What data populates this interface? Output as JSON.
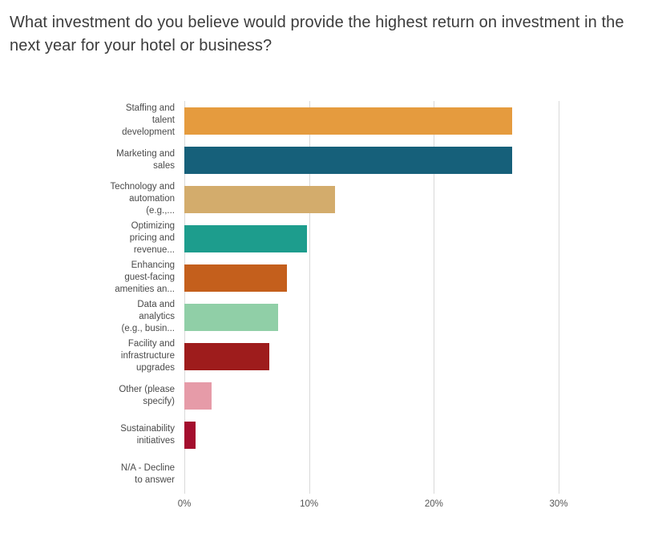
{
  "title": "What investment do you believe would provide the highest return on investment in the next year for your hotel or business?",
  "chart_data": {
    "type": "bar",
    "orientation": "horizontal",
    "title": "What investment do you believe would provide the highest return on investment in the next year for your hotel or business?",
    "xlabel": "",
    "ylabel": "",
    "xlim": [
      0,
      30
    ],
    "grid": true,
    "legend": "none",
    "x_ticks": [
      {
        "label": "0%",
        "value": 0
      },
      {
        "label": "10%",
        "value": 10
      },
      {
        "label": "20%",
        "value": 20
      },
      {
        "label": "30%",
        "value": 30
      }
    ],
    "categories": [
      "Staffing and talent development",
      "Marketing and sales",
      "Technology and automation (e.g.,...",
      "Optimizing pricing and revenue...",
      "Enhancing guest-facing amenities an...",
      "Data and analytics (e.g., busin...",
      "Facility and infrastructure upgrades",
      "Other (please specify)",
      "Sustainability initiatives",
      "N/A - Decline to answer"
    ],
    "values": [
      26.3,
      26.3,
      12.1,
      9.8,
      8.2,
      7.5,
      6.8,
      2.2,
      0.9,
      0
    ],
    "items": [
      {
        "label": "Staffing and\ntalent\ndevelopment",
        "value": 26.3,
        "color": "#e59b3e"
      },
      {
        "label": "Marketing and\nsales",
        "value": 26.3,
        "color": "#16607a"
      },
      {
        "label": "Technology and\nautomation\n(e.g.,...",
        "value": 12.1,
        "color": "#d3ac6c"
      },
      {
        "label": "Optimizing\npricing and\nrevenue...",
        "value": 9.8,
        "color": "#1d9d8d"
      },
      {
        "label": "Enhancing\nguest-facing\namenities an...",
        "value": 8.2,
        "color": "#c45f1c"
      },
      {
        "label": "Data and\nanalytics\n(e.g., busin...",
        "value": 7.5,
        "color": "#90cfa7"
      },
      {
        "label": "Facility and\ninfrastructure\nupgrades",
        "value": 6.8,
        "color": "#9e1c1c"
      },
      {
        "label": "Other (please\nspecify)",
        "value": 2.2,
        "color": "#e69ba8"
      },
      {
        "label": "Sustainability\ninitiatives",
        "value": 0.9,
        "color": "#a40e2e"
      },
      {
        "label": "N/A - Decline\nto answer",
        "value": 0,
        "color": "#cccccc"
      }
    ],
    "grid_color": "#d9d9d9",
    "tick_label_color": "#555555",
    "title_color": "#3c3c3c"
  }
}
